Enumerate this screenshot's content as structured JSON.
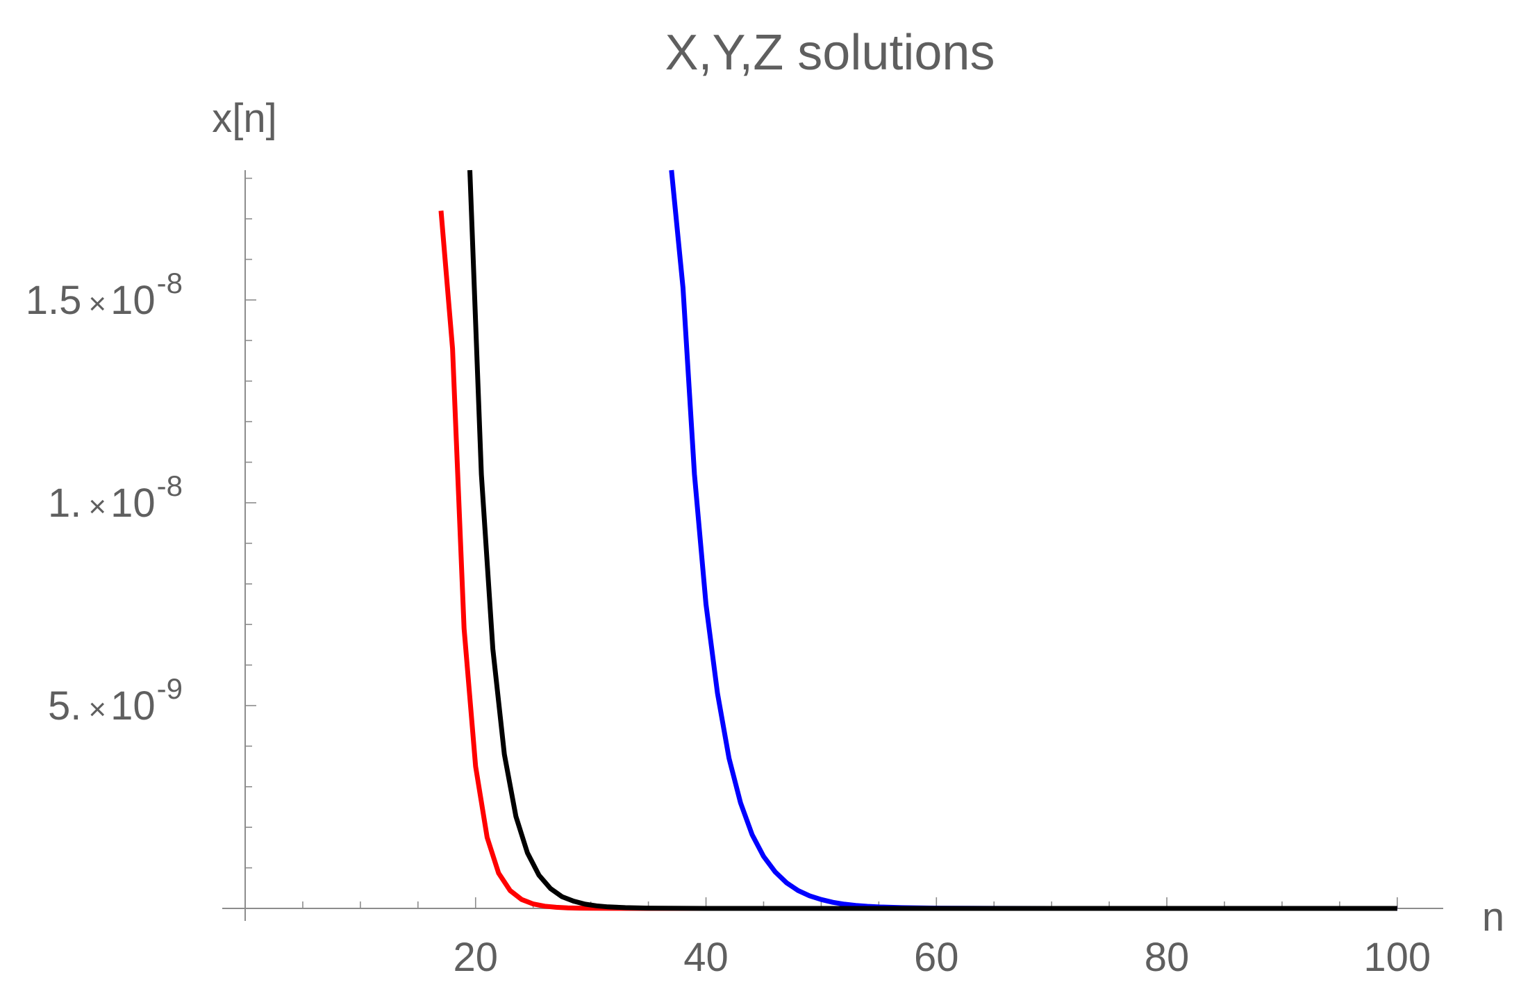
{
  "chart_data": {
    "type": "line",
    "title": "X,Y,Z solutions",
    "xlabel": "n",
    "ylabel": "x[n]",
    "xlim": [
      0,
      102
    ],
    "ylim": [
      0,
      1.82e-08
    ],
    "grid": false,
    "x_ticks": [
      {
        "value": 20,
        "label": "20"
      },
      {
        "value": 40,
        "label": "40"
      },
      {
        "value": 60,
        "label": "60"
      },
      {
        "value": 80,
        "label": "80"
      },
      {
        "value": 100,
        "label": "100"
      }
    ],
    "y_ticks": [
      {
        "value": 5e-09,
        "mantissa": "5.",
        "times": "×",
        "base": "10",
        "exponent": "-9"
      },
      {
        "value": 1e-08,
        "mantissa": "1.",
        "times": "×",
        "base": "10",
        "exponent": "-8"
      },
      {
        "value": 1.5e-08,
        "mantissa": "1.5",
        "times": "×",
        "base": "10",
        "exponent": "-8"
      }
    ],
    "series": [
      {
        "color": "#ff0000",
        "points": [
          [
            17,
            1.72e-08
          ],
          [
            18,
            1.38e-08
          ],
          [
            19,
            6.9e-09
          ],
          [
            20,
            3.5e-09
          ],
          [
            21,
            1.75e-09
          ],
          [
            22,
            8.7e-10
          ],
          [
            23,
            4.4e-10
          ],
          [
            24,
            2.2e-10
          ],
          [
            25,
            1.1e-10
          ],
          [
            26,
            5.5e-11
          ],
          [
            27,
            2.7e-11
          ],
          [
            28,
            1.4e-11
          ],
          [
            29,
            7e-12
          ],
          [
            30,
            3.5e-12
          ],
          [
            32,
            9e-13
          ],
          [
            35,
            1e-13
          ],
          [
            40,
            0
          ],
          [
            100,
            0
          ]
        ]
      },
      {
        "color": "#0000ff",
        "points": [
          [
            37,
            1.82e-08
          ],
          [
            38,
            1.53e-08
          ],
          [
            39,
            1.07e-08
          ],
          [
            40,
            7.5e-09
          ],
          [
            41,
            5.3e-09
          ],
          [
            42,
            3.7e-09
          ],
          [
            43,
            2.6e-09
          ],
          [
            44,
            1.82e-09
          ],
          [
            45,
            1.28e-09
          ],
          [
            46,
            9e-10
          ],
          [
            47,
            6.3e-10
          ],
          [
            48,
            4.4e-10
          ],
          [
            49,
            3.1e-10
          ],
          [
            50,
            2.2e-10
          ],
          [
            51,
            1.5e-10
          ],
          [
            52,
            1.05e-10
          ],
          [
            53,
            7.4e-11
          ],
          [
            54,
            5.2e-11
          ],
          [
            55,
            3.6e-11
          ],
          [
            57,
            1.8e-11
          ],
          [
            60,
            6e-12
          ],
          [
            65,
            1e-12
          ],
          [
            70,
            0
          ],
          [
            100,
            0
          ]
        ]
      },
      {
        "color": "#000000",
        "points": [
          [
            19.5,
            1.82e-08
          ],
          [
            20.5,
            1.07e-08
          ],
          [
            21.5,
            6.4e-09
          ],
          [
            22.5,
            3.8e-09
          ],
          [
            23.5,
            2.27e-09
          ],
          [
            24.5,
            1.37e-09
          ],
          [
            25.5,
            8.2e-10
          ],
          [
            26.5,
            4.9e-10
          ],
          [
            27.5,
            2.9e-10
          ],
          [
            28.5,
            1.8e-10
          ],
          [
            29.5,
            1.05e-10
          ],
          [
            30.5,
            6.3e-11
          ],
          [
            31.5,
            3.8e-11
          ],
          [
            33,
            1.8e-11
          ],
          [
            35,
            6e-12
          ],
          [
            40,
            5e-13
          ],
          [
            50,
            0
          ],
          [
            100,
            0
          ]
        ]
      }
    ]
  }
}
